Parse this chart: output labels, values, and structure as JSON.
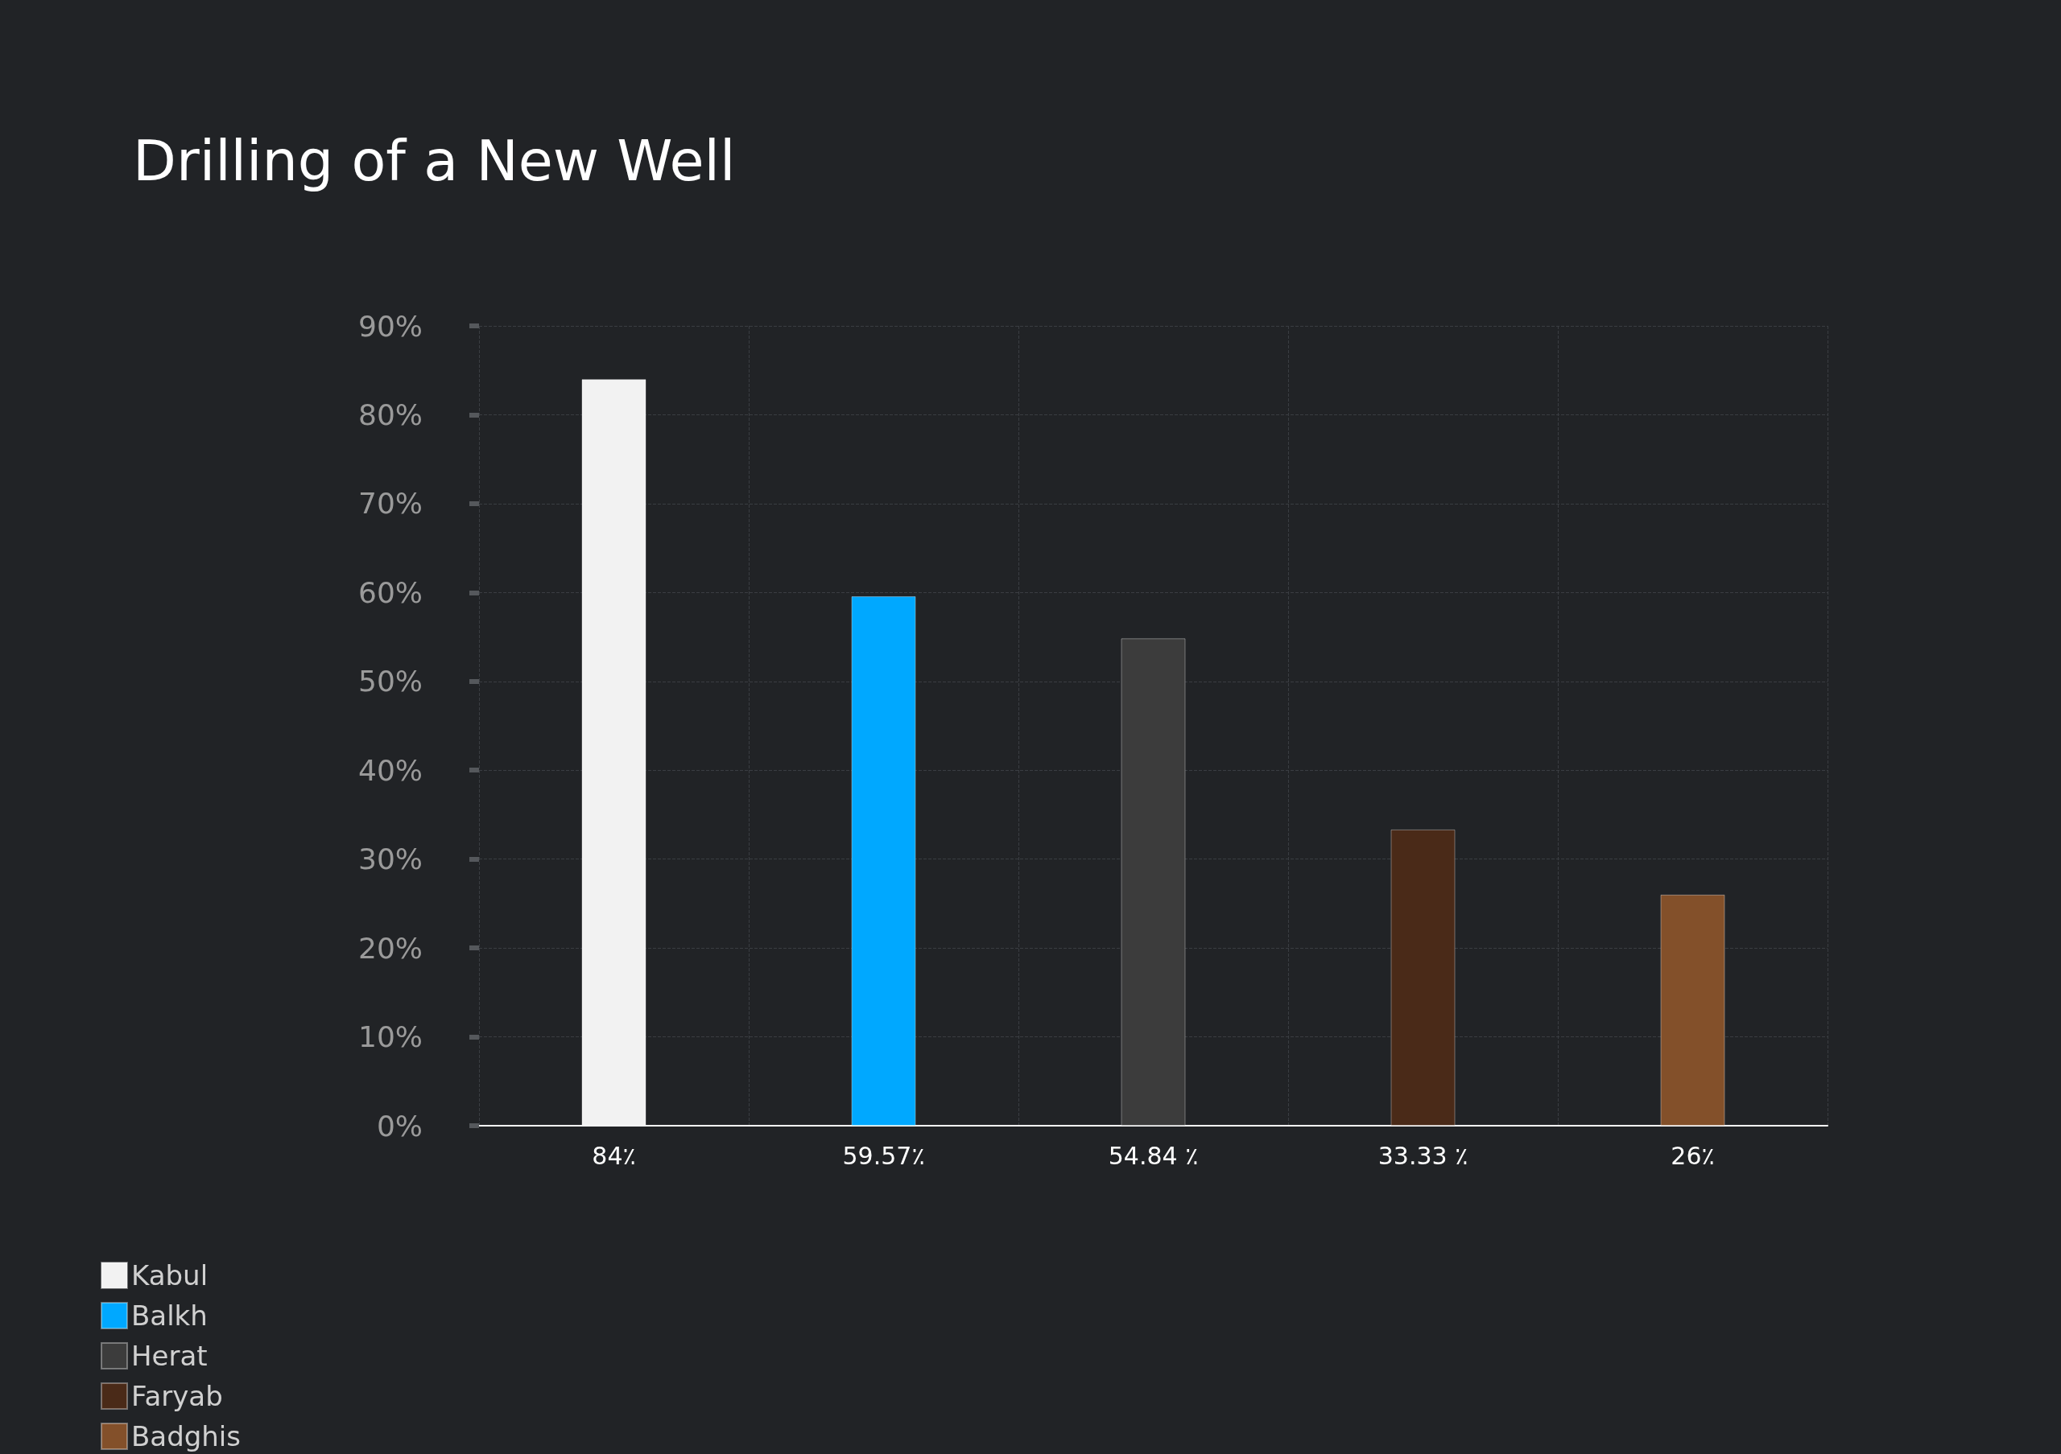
{
  "chart_data": {
    "type": "bar",
    "title": "Drilling of a New Well",
    "categories": [
      null,
      null,
      null,
      null,
      null
    ],
    "stacked": true,
    "series": [
      {
        "name": "Kabul",
        "color": "#f2f2f2",
        "values": [
          84,
          null,
          null,
          null,
          null
        ],
        "value_labels": [
          "84٪",
          null,
          null,
          null,
          null
        ]
      },
      {
        "name": "Balkh",
        "color": "#00a8ff",
        "values": [
          null,
          59.57,
          null,
          null,
          null
        ],
        "value_labels": [
          null,
          "59.57٪",
          null,
          null,
          null
        ]
      },
      {
        "name": "Herat",
        "color": "#3c3c3c",
        "values": [
          null,
          null,
          54.84,
          null,
          null
        ],
        "value_labels": [
          null,
          null,
          "54.84 ٪",
          null,
          null
        ]
      },
      {
        "name": "Faryab",
        "color": "#4a2a18",
        "values": [
          null,
          null,
          null,
          33.33,
          null
        ],
        "value_labels": [
          null,
          null,
          null,
          "33.33 ٪",
          null
        ]
      },
      {
        "name": "Badghis",
        "color": "#83502a",
        "values": [
          null,
          null,
          null,
          null,
          26
        ],
        "value_labels": [
          null,
          null,
          null,
          null,
          "26٪"
        ]
      }
    ],
    "ylim": [
      0,
      90
    ],
    "yticks": [
      {
        "value": 0,
        "label": "0%"
      },
      {
        "value": 10,
        "label": "10%"
      },
      {
        "value": 20,
        "label": "20%"
      },
      {
        "value": 30,
        "label": "30%"
      },
      {
        "value": 40,
        "label": "40%"
      },
      {
        "value": 50,
        "label": "50%"
      },
      {
        "value": 60,
        "label": "60%"
      },
      {
        "value": 70,
        "label": "70%"
      },
      {
        "value": 80,
        "label": "80%"
      },
      {
        "value": 90,
        "label": "90%"
      }
    ],
    "grid": true,
    "legend": "left"
  }
}
